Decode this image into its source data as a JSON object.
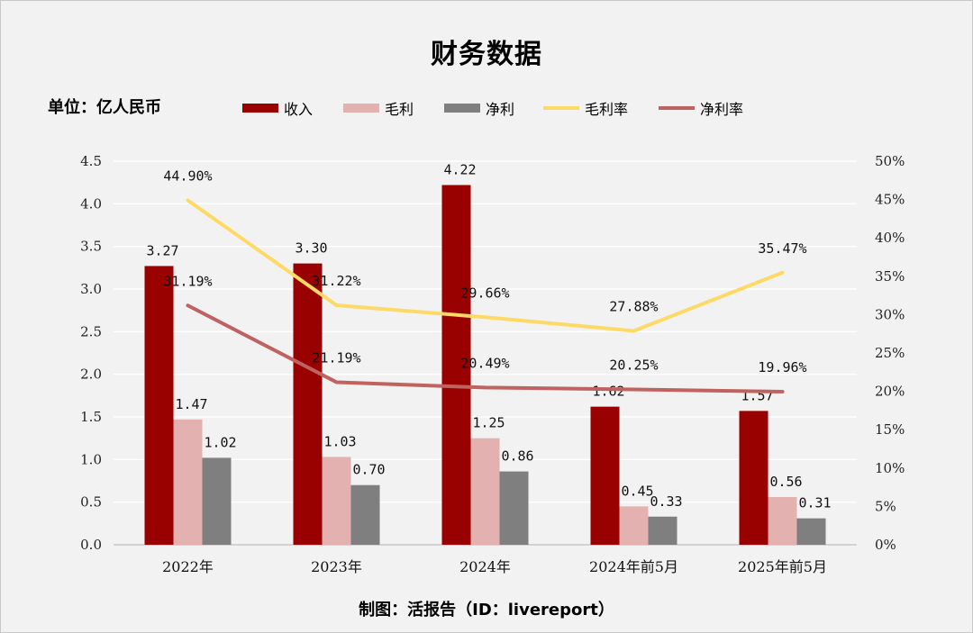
{
  "page": {
    "title": "财务数据",
    "unit_label": "单位：亿人民币",
    "footer": "制图：活报告（ID：livereport）"
  },
  "legend": [
    {
      "name": "收入",
      "kind": "bar",
      "color": "#990000"
    },
    {
      "name": "毛利",
      "kind": "bar",
      "color": "#e2b1b0"
    },
    {
      "name": "净利",
      "kind": "bar",
      "color": "#7f7f7f"
    },
    {
      "name": "毛利率",
      "kind": "line",
      "color": "#ffd966"
    },
    {
      "name": "净利率",
      "kind": "line",
      "color": "#c0625f"
    }
  ],
  "chart_data": {
    "type": "bar",
    "title": "财务数据",
    "categories": [
      "2022年",
      "2023年",
      "2024年",
      "2024年前5月",
      "2025年前5月"
    ],
    "series": [
      {
        "name": "收入",
        "type": "bar",
        "axis": "left",
        "color": "#990000",
        "values": [
          3.27,
          3.3,
          4.22,
          1.62,
          1.57
        ],
        "labels": [
          "3.27",
          "3.30",
          "4.22",
          "1.62",
          "1.57"
        ]
      },
      {
        "name": "毛利",
        "type": "bar",
        "axis": "left",
        "color": "#e2b1b0",
        "values": [
          1.47,
          1.03,
          1.25,
          0.45,
          0.56
        ],
        "labels": [
          "1.47",
          "1.03",
          "1.25",
          "0.45",
          "0.56"
        ]
      },
      {
        "name": "净利",
        "type": "bar",
        "axis": "left",
        "color": "#7f7f7f",
        "values": [
          1.02,
          0.7,
          0.86,
          0.33,
          0.31
        ],
        "labels": [
          "1.02",
          "0.70",
          "0.86",
          "0.33",
          "0.31"
        ]
      },
      {
        "name": "毛利率",
        "type": "line",
        "axis": "right",
        "color": "#ffd966",
        "values": [
          44.9,
          31.22,
          29.66,
          27.88,
          35.47
        ],
        "labels": [
          "44.90%",
          "31.22%",
          "29.66%",
          "27.88%",
          "35.47%"
        ]
      },
      {
        "name": "净利率",
        "type": "line",
        "axis": "right",
        "color": "#c0625f",
        "values": [
          31.19,
          21.19,
          20.49,
          20.25,
          19.96
        ],
        "labels": [
          "31.19%",
          "21.19%",
          "20.49%",
          "20.25%",
          "19.96%"
        ]
      }
    ],
    "y_left": {
      "min": 0,
      "max": 4.5,
      "ticks": [
        "0.0",
        "0.5",
        "1.0",
        "1.5",
        "2.0",
        "2.5",
        "3.0",
        "3.5",
        "4.0",
        "4.5"
      ]
    },
    "y_right": {
      "min": 0,
      "max": 50,
      "ticks": [
        "0%",
        "5%",
        "10%",
        "15%",
        "20%",
        "25%",
        "30%",
        "35%",
        "40%",
        "45%",
        "50%"
      ]
    },
    "grid": true,
    "legend_position": "top"
  }
}
